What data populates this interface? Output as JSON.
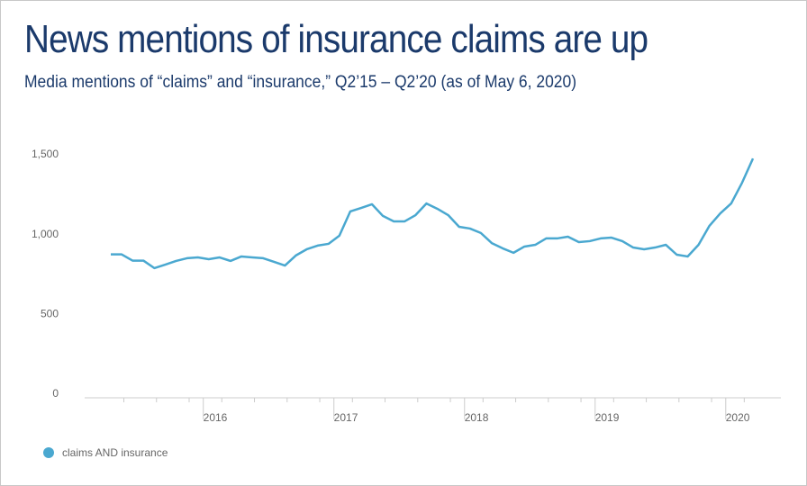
{
  "chart_data": {
    "type": "line",
    "title": "News mentions of insurance claims are up",
    "subtitle": "Media mentions of “claims” and “insurance,” Q2’15 – Q2’20 (as of May 6, 2020)",
    "categories": [
      null,
      null,
      null,
      null,
      null,
      null,
      null,
      null,
      null,
      "2016",
      null,
      null,
      null,
      null,
      null,
      null,
      null,
      null,
      null,
      null,
      null,
      "2017",
      null,
      null,
      null,
      null,
      null,
      null,
      null,
      null,
      null,
      null,
      null,
      "2018",
      null,
      null,
      null,
      null,
      null,
      null,
      null,
      null,
      null,
      null,
      null,
      "2019",
      null,
      null,
      null,
      null,
      null,
      null,
      null,
      null,
      null,
      null,
      null,
      "2020",
      null,
      null
    ],
    "series": [
      {
        "name": "claims AND insurance",
        "color": "#4aa8d0",
        "values": [
          876,
          876,
          837,
          837,
          790,
          812,
          835,
          852,
          857,
          846,
          857,
          835,
          863,
          857,
          852,
          829,
          806,
          869,
          908,
          931,
          942,
          993,
          1145,
          1167,
          1190,
          1117,
          1083,
          1083,
          1122,
          1195,
          1162,
          1122,
          1049,
          1038,
          1010,
          947,
          914,
          886,
          925,
          936,
          976,
          976,
          987,
          953,
          959,
          976,
          981,
          959,
          919,
          908,
          919,
          936,
          874,
          863,
          936,
          1055,
          1133,
          1195,
          1325,
          1477
        ]
      }
    ],
    "ylim": [
      0,
      1500
    ],
    "yticks": [
      0,
      500,
      {
        "value": 1000,
        "label": "1,000"
      },
      {
        "value": 1500,
        "label": "1,500"
      }
    ]
  }
}
